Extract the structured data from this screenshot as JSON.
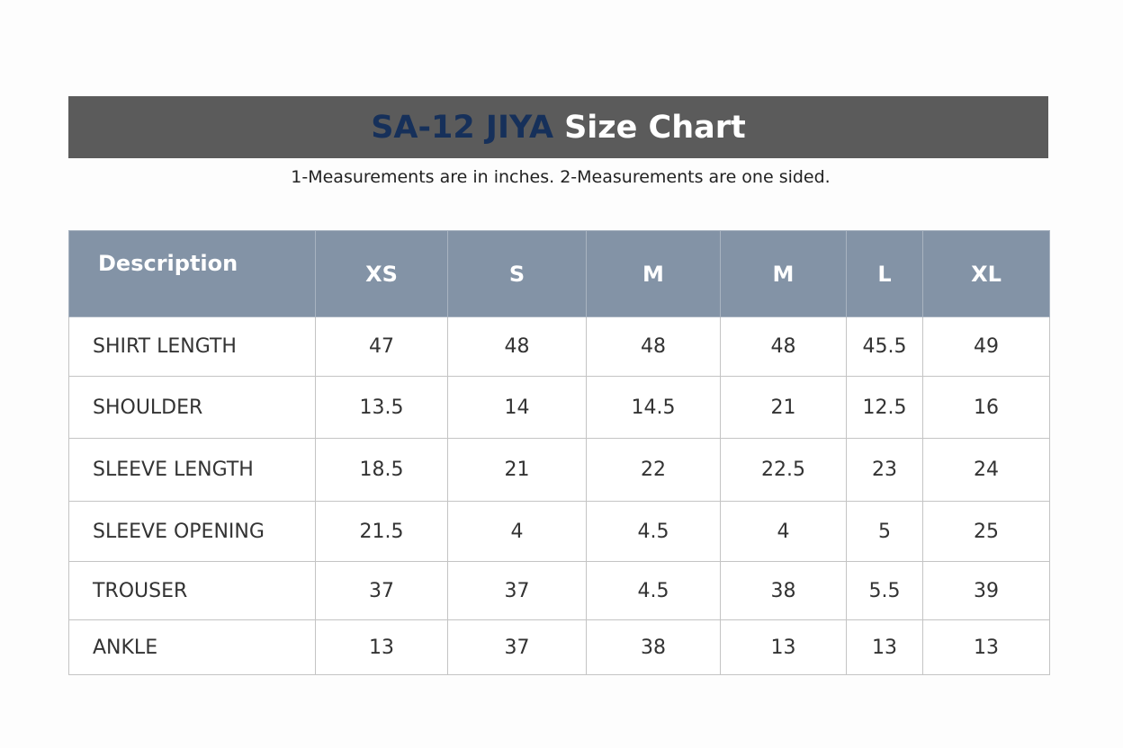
{
  "header": {
    "title_code": "SA-12 JIYA",
    "title_text": "Size Chart",
    "note": "1-Measurements are in inches. 2-Measurements are one sided."
  },
  "table": {
    "columns": [
      "Description",
      "XS",
      "S",
      "M",
      "M",
      "L",
      "XL"
    ],
    "rows": [
      {
        "label": "SHIRT LENGTH",
        "values": [
          47,
          48,
          48,
          48,
          45.5,
          49
        ]
      },
      {
        "label": "SHOULDER",
        "values": [
          13.5,
          14,
          14.5,
          21,
          12.5,
          16
        ]
      },
      {
        "label": "SLEEVE LENGTH",
        "values": [
          18.5,
          21,
          22,
          22.5,
          23,
          24
        ]
      },
      {
        "label": "SLEEVE OPENING",
        "values": [
          21.5,
          4,
          4.5,
          4,
          5,
          25
        ]
      },
      {
        "label": "TROUSER",
        "values": [
          37,
          37,
          4.5,
          38,
          5.5,
          39
        ]
      },
      {
        "label": "ANKLE",
        "values": [
          13,
          37,
          38,
          13,
          13,
          13
        ]
      }
    ]
  }
}
